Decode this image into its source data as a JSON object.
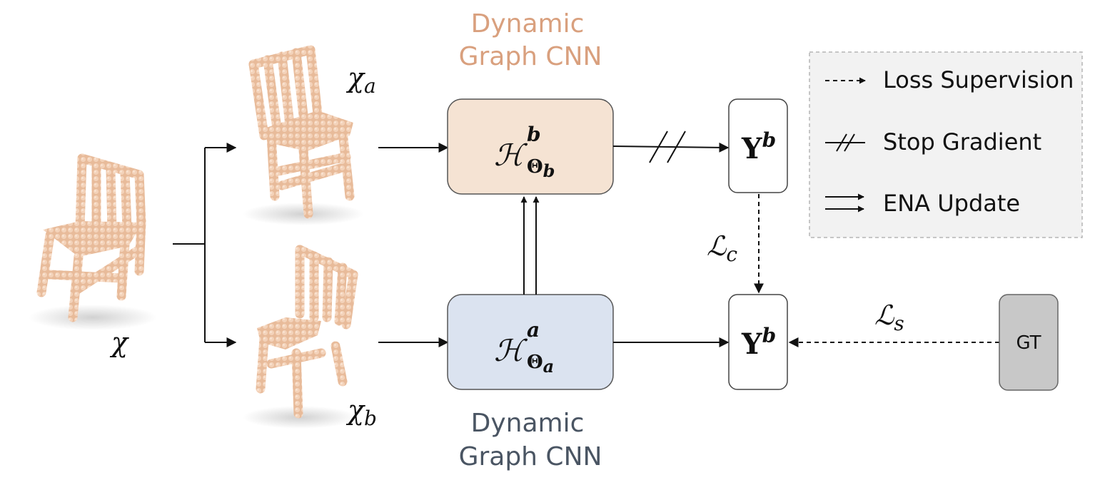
{
  "diagram": {
    "inputs": {
      "source": "χ",
      "view_a": "χ",
      "view_a_sub": "a",
      "view_b": "χ",
      "view_b_sub": "b"
    },
    "network_top": {
      "caption_line1": "Dynamic",
      "caption_line2": "Graph CNN",
      "symbol": "ℋ",
      "superscript": "b",
      "subscript": "Θ",
      "subscript_sub": "b",
      "fill": "#f5e3d3"
    },
    "network_bottom": {
      "caption_line1": "Dynamic",
      "caption_line2": "Graph CNN",
      "symbol": "ℋ",
      "superscript": "a",
      "subscript": "Θ",
      "subscript_sub": "a",
      "fill": "#dbe3f0"
    },
    "output_top": {
      "symbol": "Y",
      "superscript": "b"
    },
    "output_bottom": {
      "symbol": "Y",
      "superscript": "b"
    },
    "losses": {
      "consistency": "ℒ",
      "consistency_sub": "c",
      "supervised": "ℒ",
      "supervised_sub": "s"
    },
    "ground_truth": {
      "label": "GT",
      "fill": "#c8c8c8"
    },
    "legend": {
      "items": [
        {
          "icon": "dashed-arrow-icon",
          "label": "Loss Supervision"
        },
        {
          "icon": "stop-gradient-icon",
          "label": "Stop Gradient"
        },
        {
          "icon": "double-arrow-icon",
          "label": "ENA Update"
        }
      ],
      "fill": "#f2f2f2"
    },
    "colors": {
      "chair": "#eec5a8",
      "chair_shade": "#d9a583"
    }
  }
}
